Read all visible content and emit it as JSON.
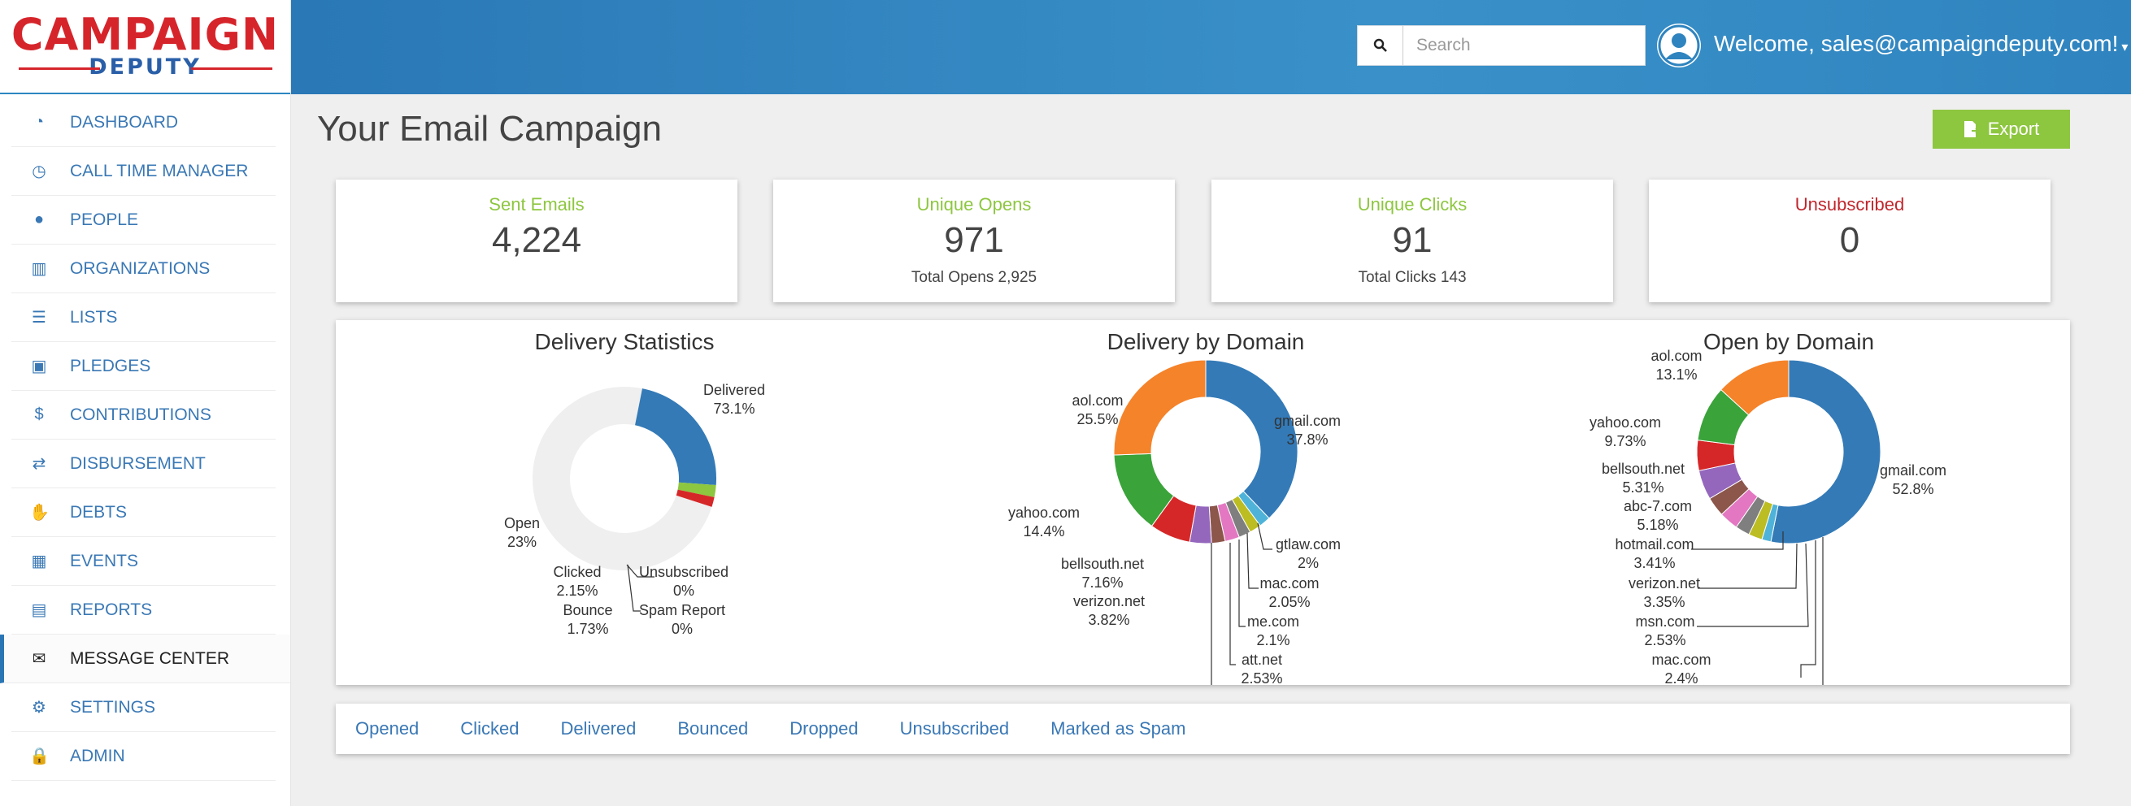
{
  "logo": {
    "main": "CAMPAIGN",
    "sub": "DEPUTY"
  },
  "nav": [
    {
      "label": "DASHBOARD",
      "icon": "dashboard-icon",
      "glyph": "◔"
    },
    {
      "label": "CALL TIME MANAGER",
      "icon": "clock-icon",
      "glyph": "◷"
    },
    {
      "label": "PEOPLE",
      "icon": "user-icon",
      "glyph": "●"
    },
    {
      "label": "ORGANIZATIONS",
      "icon": "building-icon",
      "glyph": "▥"
    },
    {
      "label": "LISTS",
      "icon": "list-icon",
      "glyph": "☰"
    },
    {
      "label": "PLEDGES",
      "icon": "gift-icon",
      "glyph": "▣"
    },
    {
      "label": "CONTRIBUTIONS",
      "icon": "dollar-icon",
      "glyph": "$"
    },
    {
      "label": "DISBURSEMENT",
      "icon": "exchange-icon",
      "glyph": "⇄"
    },
    {
      "label": "DEBTS",
      "icon": "handshake-icon",
      "glyph": "✋"
    },
    {
      "label": "EVENTS",
      "icon": "calendar-icon",
      "glyph": "▦"
    },
    {
      "label": "REPORTS",
      "icon": "file-icon",
      "glyph": "▤"
    },
    {
      "label": "MESSAGE CENTER",
      "icon": "envelope-icon",
      "glyph": "✉",
      "active": true
    },
    {
      "label": "SETTINGS",
      "icon": "gear-icon",
      "glyph": "⚙"
    },
    {
      "label": "ADMIN",
      "icon": "lock-icon",
      "glyph": "🔒"
    }
  ],
  "header": {
    "search_placeholder": "Search",
    "welcome": "Welcome, sales@campaigndeputy.com!"
  },
  "main": {
    "title": "Your Email Campaign",
    "export_label": "Export",
    "stats": [
      {
        "label": "Sent Emails",
        "value": "4,224",
        "sub": "",
        "color": "#8dc63f"
      },
      {
        "label": "Unique Opens",
        "value": "971",
        "sub": "Total Opens 2,925",
        "color": "#8dc63f"
      },
      {
        "label": "Unique Clicks",
        "value": "91",
        "sub": "Total Clicks 143",
        "color": "#8dc63f"
      },
      {
        "label": "Unsubscribed",
        "value": "0",
        "sub": "",
        "color": "#c0272d"
      }
    ],
    "tabs": [
      "Opened",
      "Clicked",
      "Delivered",
      "Bounced",
      "Dropped",
      "Unsubscribed",
      "Marked as Spam"
    ]
  },
  "chart_data": [
    {
      "type": "pie",
      "title": "Delivery Statistics",
      "slices": [
        {
          "name": "Delivered",
          "pct": "73.1%",
          "value": 73.1,
          "color": "#efefef"
        },
        {
          "name": "Open",
          "pct": "23%",
          "value": 23.0,
          "color": "#337ab7"
        },
        {
          "name": "Clicked",
          "pct": "2.15%",
          "value": 2.15,
          "color": "#8dc63f"
        },
        {
          "name": "Bounce",
          "pct": "1.73%",
          "value": 1.73,
          "color": "#d62728"
        },
        {
          "name": "Unsubscribed",
          "pct": "0%",
          "value": 0,
          "color": "#ff7f0e"
        },
        {
          "name": "Spam Report",
          "pct": "0%",
          "value": 0,
          "color": "#9467bd"
        }
      ]
    },
    {
      "type": "pie",
      "title": "Delivery by Domain",
      "slices": [
        {
          "name": "gmail.com",
          "pct": "37.8%",
          "value": 37.8,
          "color": "#337ab7"
        },
        {
          "name": "gtlaw.com",
          "pct": "2%",
          "value": 2.0,
          "color": "#4fb3d9"
        },
        {
          "name": "mac.com",
          "pct": "2.05%",
          "value": 2.05,
          "color": "#bcbd22"
        },
        {
          "name": "me.com",
          "pct": "2.1%",
          "value": 2.1,
          "color": "#7f7f7f"
        },
        {
          "name": "att.net",
          "pct": "2.53%",
          "value": 2.53,
          "color": "#e377c2"
        },
        {
          "name": "",
          "pct": "",
          "value": 2.4,
          "color": "#8c564b"
        },
        {
          "name": "verizon.net",
          "pct": "3.82%",
          "value": 3.82,
          "color": "#9467bd"
        },
        {
          "name": "bellsouth.net",
          "pct": "7.16%",
          "value": 7.16,
          "color": "#d62728"
        },
        {
          "name": "yahoo.com",
          "pct": "14.4%",
          "value": 14.4,
          "color": "#3aa33a"
        },
        {
          "name": "aol.com",
          "pct": "25.5%",
          "value": 25.5,
          "color": "#f5832a"
        }
      ]
    },
    {
      "type": "pie",
      "title": "Open by Domain",
      "slices": [
        {
          "name": "gmail.com",
          "pct": "52.8%",
          "value": 52.8,
          "color": "#337ab7"
        },
        {
          "name": "",
          "pct": "",
          "value": 1.6,
          "color": "#4fb3d9"
        },
        {
          "name": "mac.com",
          "pct": "2.4%",
          "value": 2.4,
          "color": "#bcbd22"
        },
        {
          "name": "msn.com",
          "pct": "2.53%",
          "value": 2.53,
          "color": "#7f7f7f"
        },
        {
          "name": "verizon.net",
          "pct": "3.35%",
          "value": 3.35,
          "color": "#e377c2"
        },
        {
          "name": "hotmail.com",
          "pct": "3.41%",
          "value": 3.41,
          "color": "#8c564b"
        },
        {
          "name": "abc-7.com",
          "pct": "5.18%",
          "value": 5.18,
          "color": "#9467bd"
        },
        {
          "name": "bellsouth.net",
          "pct": "5.31%",
          "value": 5.31,
          "color": "#d62728"
        },
        {
          "name": "yahoo.com",
          "pct": "9.73%",
          "value": 9.73,
          "color": "#3aa33a"
        },
        {
          "name": "aol.com",
          "pct": "13.1%",
          "value": 13.1,
          "color": "#f5832a"
        }
      ]
    }
  ]
}
